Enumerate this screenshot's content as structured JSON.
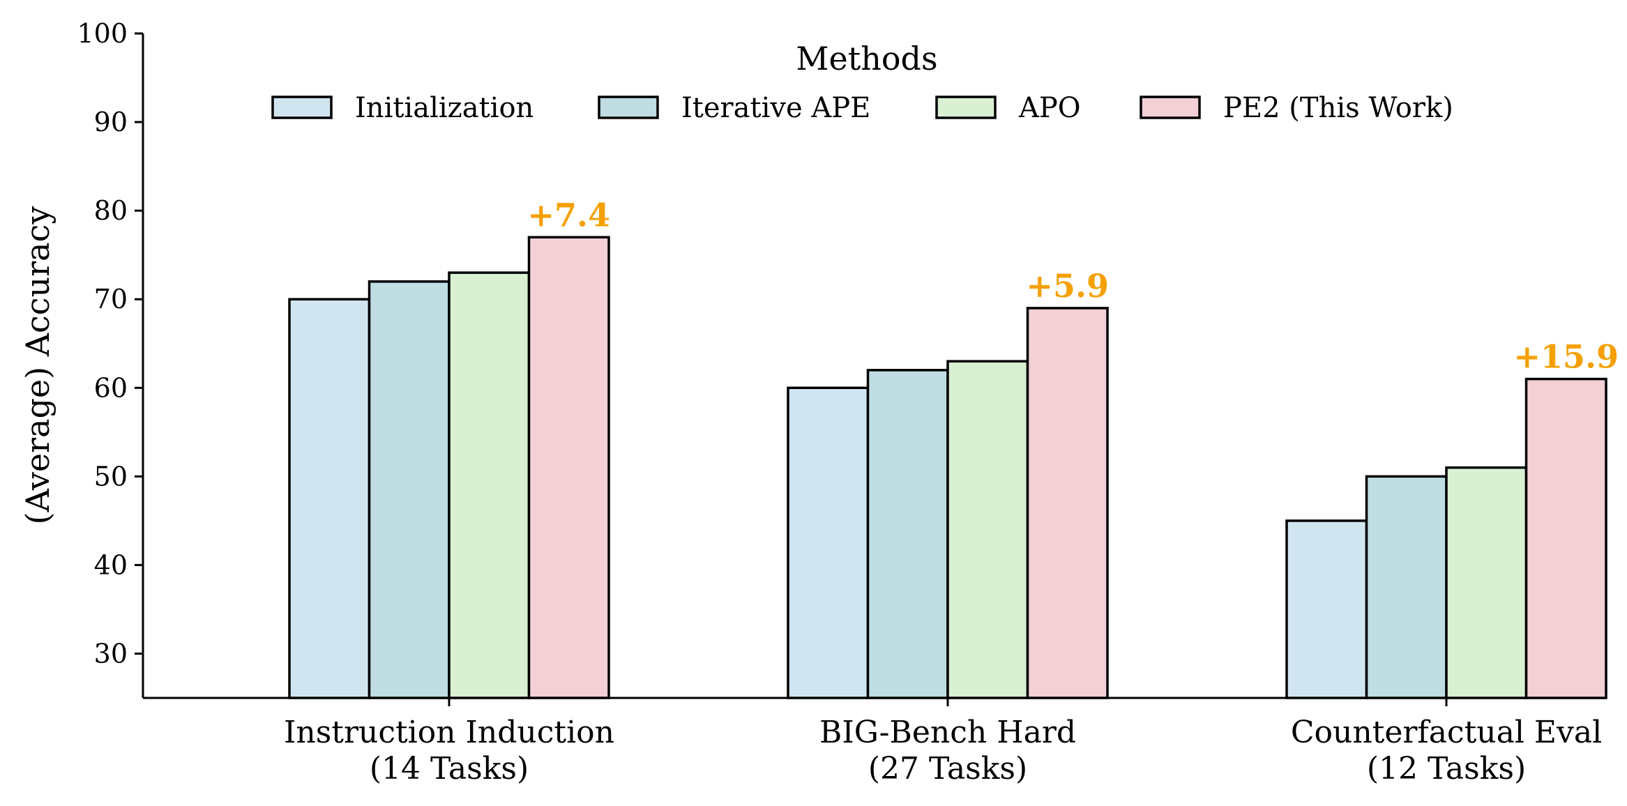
{
  "chart_data": {
    "type": "bar",
    "categories": [
      [
        "Instruction Induction",
        "(14 Tasks)"
      ],
      [
        "BIG-Bench Hard",
        "(27 Tasks)"
      ],
      [
        "Counterfactual Eval",
        "(12 Tasks)"
      ]
    ],
    "series": [
      {
        "name": "Initialization",
        "values": [
          70,
          60,
          45
        ],
        "color": "#d1e5f0"
      },
      {
        "name": "Iterative APE",
        "values": [
          72,
          62,
          50
        ],
        "color": "#bfdde2"
      },
      {
        "name": "APO",
        "values": [
          73,
          63,
          51
        ],
        "color": "#d9f0d3"
      },
      {
        "name": "PE2 (This Work)",
        "values": [
          77,
          69,
          61
        ],
        "color": "#f2d0d5"
      }
    ],
    "annotations": [
      {
        "category_index": 0,
        "series_index": 3,
        "text": "+7.4"
      },
      {
        "category_index": 1,
        "series_index": 3,
        "text": "+5.9"
      },
      {
        "category_index": 2,
        "series_index": 3,
        "text": "+15.9"
      }
    ],
    "annotation_color": "#f5a000",
    "ylabel": "(Average) Accuracy",
    "xlabel": "",
    "title": "",
    "ylim": [
      25,
      100
    ],
    "yticks": [
      30,
      40,
      50,
      60,
      70,
      80,
      90,
      100
    ],
    "legend": {
      "title": "Methods",
      "placement": "top-center",
      "ncol": 4
    },
    "grid": false
  }
}
